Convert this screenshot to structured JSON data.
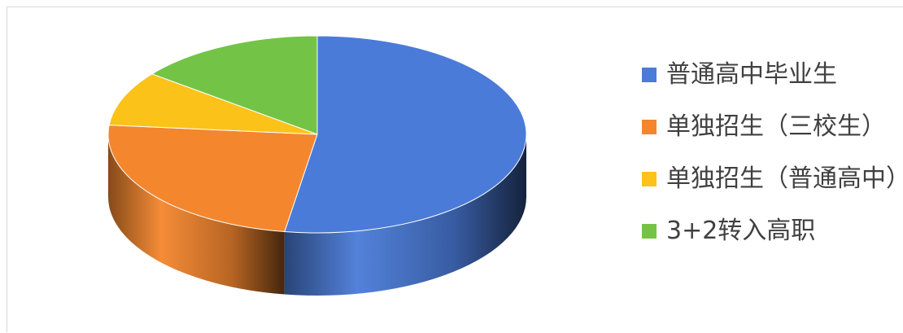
{
  "chart_data": {
    "type": "pie",
    "categories": [
      "普通高中毕业生",
      "单独招生（三校生）",
      "单独招生（普通高中）",
      "3+2转入高职"
    ],
    "values": [
      52.5,
      24,
      9,
      14.5
    ],
    "colors": [
      "#4a7bd8",
      "#f4862e",
      "#fbc21a",
      "#73c446"
    ],
    "legend_position": "right",
    "three_d": true
  }
}
